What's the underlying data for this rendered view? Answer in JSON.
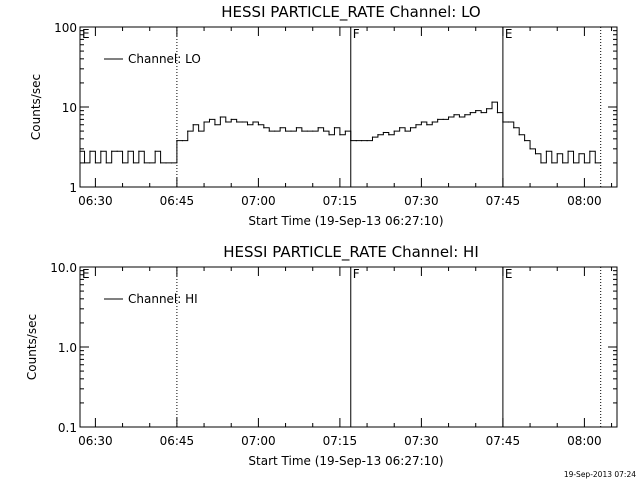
{
  "timestamp": "19-Sep-2013 07:24",
  "chart_data": [
    {
      "type": "line",
      "title": "HESSI PARTICLE_RATE Channel: LO",
      "xlabel": "Start Time (19-Sep-13 06:27:10)",
      "ylabel": "Counts/sec",
      "yscale": "log",
      "ylim": [
        1,
        100
      ],
      "xlim": [
        "06:27:10",
        "08:06:00"
      ],
      "xticks": [
        "06:30",
        "06:45",
        "07:00",
        "07:15",
        "07:30",
        "07:45",
        "08:00"
      ],
      "yticks": [
        "1",
        "10",
        "100"
      ],
      "legend": {
        "label": "Channel: LO",
        "position": "top-left"
      },
      "markers": [
        {
          "label": "E",
          "time": "06:27:10",
          "style": "solid"
        },
        {
          "label": "",
          "time": "06:45:00",
          "style": "dotted"
        },
        {
          "label": "F",
          "time": "07:17:00",
          "style": "solid"
        },
        {
          "label": "E",
          "time": "07:45:00",
          "style": "solid"
        },
        {
          "label": "",
          "time": "08:03:00",
          "style": "dotted"
        }
      ],
      "series": [
        {
          "name": "Channel: LO",
          "x": [
            "06:27:10",
            "06:28:00",
            "06:29:00",
            "06:30:00",
            "06:31:00",
            "06:32:00",
            "06:33:00",
            "06:34:00",
            "06:35:00",
            "06:36:00",
            "06:37:00",
            "06:38:00",
            "06:39:00",
            "06:40:00",
            "06:41:00",
            "06:42:00",
            "06:43:00",
            "06:44:00",
            "06:45:00",
            "06:46:00",
            "06:47:00",
            "06:48:00",
            "06:49:00",
            "06:50:00",
            "06:51:00",
            "06:52:00",
            "06:53:00",
            "06:54:00",
            "06:55:00",
            "06:56:00",
            "06:57:00",
            "06:58:00",
            "06:59:00",
            "07:00:00",
            "07:01:00",
            "07:02:00",
            "07:03:00",
            "07:04:00",
            "07:05:00",
            "07:06:00",
            "07:07:00",
            "07:08:00",
            "07:09:00",
            "07:10:00",
            "07:11:00",
            "07:12:00",
            "07:13:00",
            "07:14:00",
            "07:15:00",
            "07:16:00",
            "07:17:00",
            "07:18:00",
            "07:19:00",
            "07:20:00",
            "07:21:00",
            "07:22:00",
            "07:23:00",
            "07:24:00",
            "07:25:00",
            "07:26:00",
            "07:27:00",
            "07:28:00",
            "07:29:00",
            "07:30:00",
            "07:31:00",
            "07:32:00",
            "07:33:00",
            "07:34:00",
            "07:35:00",
            "07:36:00",
            "07:37:00",
            "07:38:00",
            "07:39:00",
            "07:40:00",
            "07:41:00",
            "07:42:00",
            "07:43:00",
            "07:44:00",
            "07:45:00",
            "07:46:00",
            "07:47:00",
            "07:48:00",
            "07:49:00",
            "07:50:00",
            "07:51:00",
            "07:52:00",
            "07:53:00",
            "07:54:00",
            "07:55:00",
            "07:56:00",
            "07:57:00",
            "07:58:00",
            "07:59:00",
            "08:00:00",
            "08:01:00",
            "08:02:00",
            "08:03:00"
          ],
          "values": [
            2.8,
            2.0,
            2.8,
            2.0,
            2.8,
            2.0,
            2.8,
            2.8,
            2.0,
            2.8,
            2.0,
            2.8,
            2.0,
            2.0,
            2.8,
            2.0,
            2.0,
            2.0,
            3.8,
            3.8,
            5.0,
            6.0,
            5.0,
            6.5,
            7.0,
            6.0,
            7.5,
            6.5,
            7.0,
            6.5,
            6.5,
            6.0,
            6.5,
            6.0,
            5.5,
            5.0,
            5.0,
            5.5,
            5.0,
            5.0,
            5.5,
            5.0,
            5.0,
            5.0,
            5.5,
            5.0,
            4.5,
            5.5,
            4.5,
            5.0,
            3.8,
            3.8,
            3.8,
            3.8,
            4.2,
            4.5,
            4.8,
            4.5,
            5.0,
            5.5,
            5.0,
            5.5,
            6.0,
            6.5,
            6.0,
            6.5,
            7.0,
            7.0,
            7.5,
            8.0,
            7.5,
            8.0,
            8.5,
            9.0,
            8.5,
            9.5,
            11.5,
            8.5,
            6.5,
            6.5,
            5.5,
            4.5,
            3.8,
            3.0,
            2.6,
            2.0,
            2.8,
            2.0,
            2.6,
            2.0,
            2.8,
            2.0,
            2.6,
            2.0,
            2.8,
            2.0,
            2.0
          ]
        }
      ]
    },
    {
      "type": "line",
      "title": "HESSI PARTICLE_RATE Channel: HI",
      "xlabel": "Start Time (19-Sep-13 06:27:10)",
      "ylabel": "Counts/sec",
      "yscale": "log",
      "ylim": [
        0.1,
        10
      ],
      "xlim": [
        "06:27:10",
        "08:06:00"
      ],
      "xticks": [
        "06:30",
        "06:45",
        "07:00",
        "07:15",
        "07:30",
        "07:45",
        "08:00"
      ],
      "yticks": [
        "0.1",
        "1.0",
        "10.0"
      ],
      "legend": {
        "label": "Channel: HI",
        "position": "top-left"
      },
      "markers": [
        {
          "label": "E",
          "time": "06:27:10",
          "style": "solid"
        },
        {
          "label": "",
          "time": "06:45:00",
          "style": "dotted"
        },
        {
          "label": "F",
          "time": "07:17:00",
          "style": "solid"
        },
        {
          "label": "E",
          "time": "07:45:00",
          "style": "solid"
        },
        {
          "label": "",
          "time": "08:03:00",
          "style": "dotted"
        }
      ],
      "series": [
        {
          "name": "Channel: HI",
          "x": [],
          "values": []
        }
      ]
    }
  ]
}
